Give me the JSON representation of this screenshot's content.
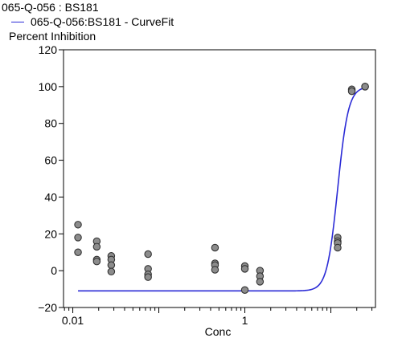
{
  "chart_data": {
    "type": "scatter",
    "title": "065-Q-056  : BS181",
    "legend": [
      {
        "label": "065-Q-056:BS181 - CurveFit",
        "color": "#2b2bd6"
      }
    ],
    "ylabel": "Percent Inhibition",
    "xlabel": "Conc",
    "x_scale": "log10",
    "xlim": [
      0.0078,
      33
    ],
    "ylim": [
      -20,
      120
    ],
    "x_ticks": [
      0.01,
      1
    ],
    "x_tick_labels": [
      "0.01",
      "1"
    ],
    "y_ticks": [
      -20,
      0,
      20,
      40,
      60,
      80,
      100,
      120
    ],
    "y_tick_labels": [
      "−20",
      "0",
      "20",
      "40",
      "60",
      "80",
      "100",
      "120"
    ],
    "points": [
      {
        "x": 0.0115,
        "y": 25
      },
      {
        "x": 0.0115,
        "y": 18
      },
      {
        "x": 0.0115,
        "y": 10
      },
      {
        "x": 0.019,
        "y": 16
      },
      {
        "x": 0.019,
        "y": 13
      },
      {
        "x": 0.019,
        "y": 6
      },
      {
        "x": 0.019,
        "y": 5
      },
      {
        "x": 0.028,
        "y": 8
      },
      {
        "x": 0.028,
        "y": 6
      },
      {
        "x": 0.028,
        "y": 3
      },
      {
        "x": 0.028,
        "y": -0.5
      },
      {
        "x": 0.075,
        "y": 9
      },
      {
        "x": 0.075,
        "y": 1
      },
      {
        "x": 0.075,
        "y": -2
      },
      {
        "x": 0.075,
        "y": -3.5
      },
      {
        "x": 0.45,
        "y": 12.5
      },
      {
        "x": 0.45,
        "y": 4
      },
      {
        "x": 0.45,
        "y": 3
      },
      {
        "x": 0.45,
        "y": 0.5
      },
      {
        "x": 1.0,
        "y": 2.5
      },
      {
        "x": 1.0,
        "y": 1
      },
      {
        "x": 1.0,
        "y": -10.5
      },
      {
        "x": 1.5,
        "y": 0
      },
      {
        "x": 1.5,
        "y": -3
      },
      {
        "x": 1.5,
        "y": -6
      },
      {
        "x": 12,
        "y": 18
      },
      {
        "x": 12,
        "y": 16
      },
      {
        "x": 12,
        "y": 15
      },
      {
        "x": 12,
        "y": 12.5
      },
      {
        "x": 17.5,
        "y": 98.5
      },
      {
        "x": 17.5,
        "y": 97.5
      },
      {
        "x": 25,
        "y": 100
      },
      {
        "x": 25,
        "y": 100
      }
    ],
    "curve": {
      "name": "065-Q-056:BS181 - CurveFit",
      "bottom": -11,
      "top": 100,
      "ec50": 12,
      "hill": 7,
      "x_range": [
        0.0115,
        25
      ]
    },
    "colors": {
      "curve": "#2b2bd6",
      "point_fill": "#8c8c8c",
      "point_stroke": "#333333",
      "axis": "#000000"
    }
  }
}
